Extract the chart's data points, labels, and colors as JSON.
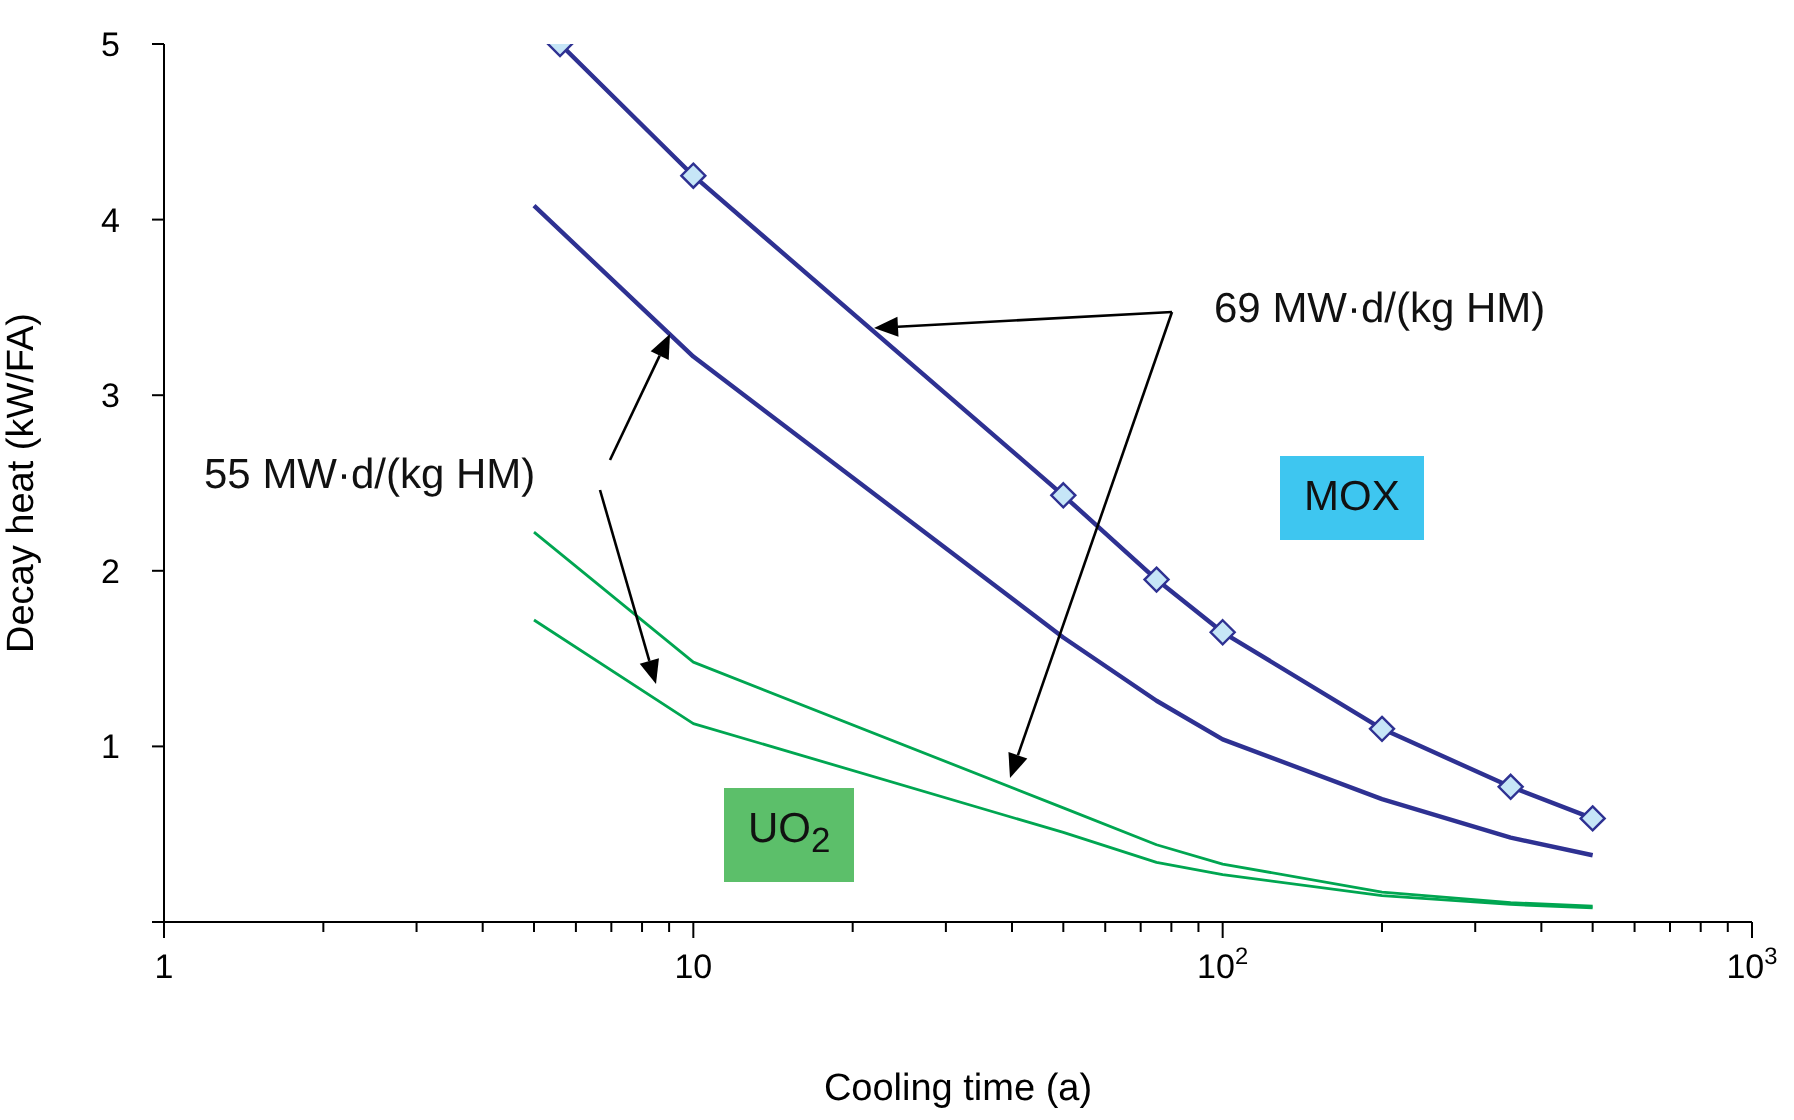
{
  "chart_data": {
    "type": "line",
    "xlabel": "Cooling time (a)",
    "ylabel": "Decay heat (kW/FA)",
    "log": "x",
    "x": [
      5,
      10,
      50,
      75,
      100,
      200,
      350,
      500
    ],
    "series": [
      {
        "color": "#2e3192",
        "marker": "diamond",
        "x": [
          5.6,
          10,
          50,
          75,
          100,
          200,
          350,
          500
        ],
        "values": [
          5.0,
          4.25,
          2.43,
          1.95,
          1.65,
          1.1,
          0.77,
          0.59
        ]
      },
      {
        "color": "#2e3192",
        "values": [
          4.08,
          3.22,
          1.62,
          1.26,
          1.04,
          0.7,
          0.48,
          0.38
        ]
      },
      {
        "color": "#00a651",
        "values": [
          2.22,
          1.48,
          0.65,
          0.44,
          0.33,
          0.17,
          0.11,
          0.09
        ]
      },
      {
        "color": "#00a651",
        "values": [
          1.72,
          1.13,
          0.51,
          0.34,
          0.27,
          0.15,
          0.1,
          0.08
        ]
      }
    ],
    "marker": "none",
    "line_style": "solid",
    "grid": false,
    "xlim": [
      1,
      1000
    ],
    "ylim": [
      0,
      5
    ],
    "yticks": [
      {
        "value": 0,
        "label": null
      },
      1,
      2,
      3,
      4,
      5
    ],
    "xticks": [
      1,
      {
        "value": 2,
        "label": null
      },
      {
        "value": 3,
        "label": null
      },
      {
        "value": 4,
        "label": null
      },
      {
        "value": 5,
        "label": null
      },
      {
        "value": 6,
        "label": null
      },
      {
        "value": 7,
        "label": null
      },
      {
        "value": 8,
        "label": null
      },
      {
        "value": 9,
        "label": null
      },
      10,
      {
        "value": 20,
        "label": null
      },
      {
        "value": 30,
        "label": null
      },
      {
        "value": 40,
        "label": null
      },
      {
        "value": 50,
        "label": null
      },
      {
        "value": 60,
        "label": null
      },
      {
        "value": 70,
        "label": null
      },
      {
        "value": 80,
        "label": null
      },
      {
        "value": 90,
        "label": null
      },
      {
        "value": 100,
        "label": "10$^{2}$"
      },
      {
        "value": 200,
        "label": null
      },
      {
        "value": 300,
        "label": null
      },
      {
        "value": 400,
        "label": null
      },
      {
        "value": 500,
        "label": null
      },
      {
        "value": 600,
        "label": null
      },
      {
        "value": 700,
        "label": null
      },
      {
        "value": 800,
        "label": null
      },
      {
        "value": 900,
        "label": null
      },
      {
        "value": 1000,
        "label": "10$^{3}$"
      }
    ],
    "annotations": [
      "69 MW·d/(kg HM)",
      "55 MW·d/(kg HM)",
      "MOX",
      "UO$_{2}$"
    ]
  }
}
